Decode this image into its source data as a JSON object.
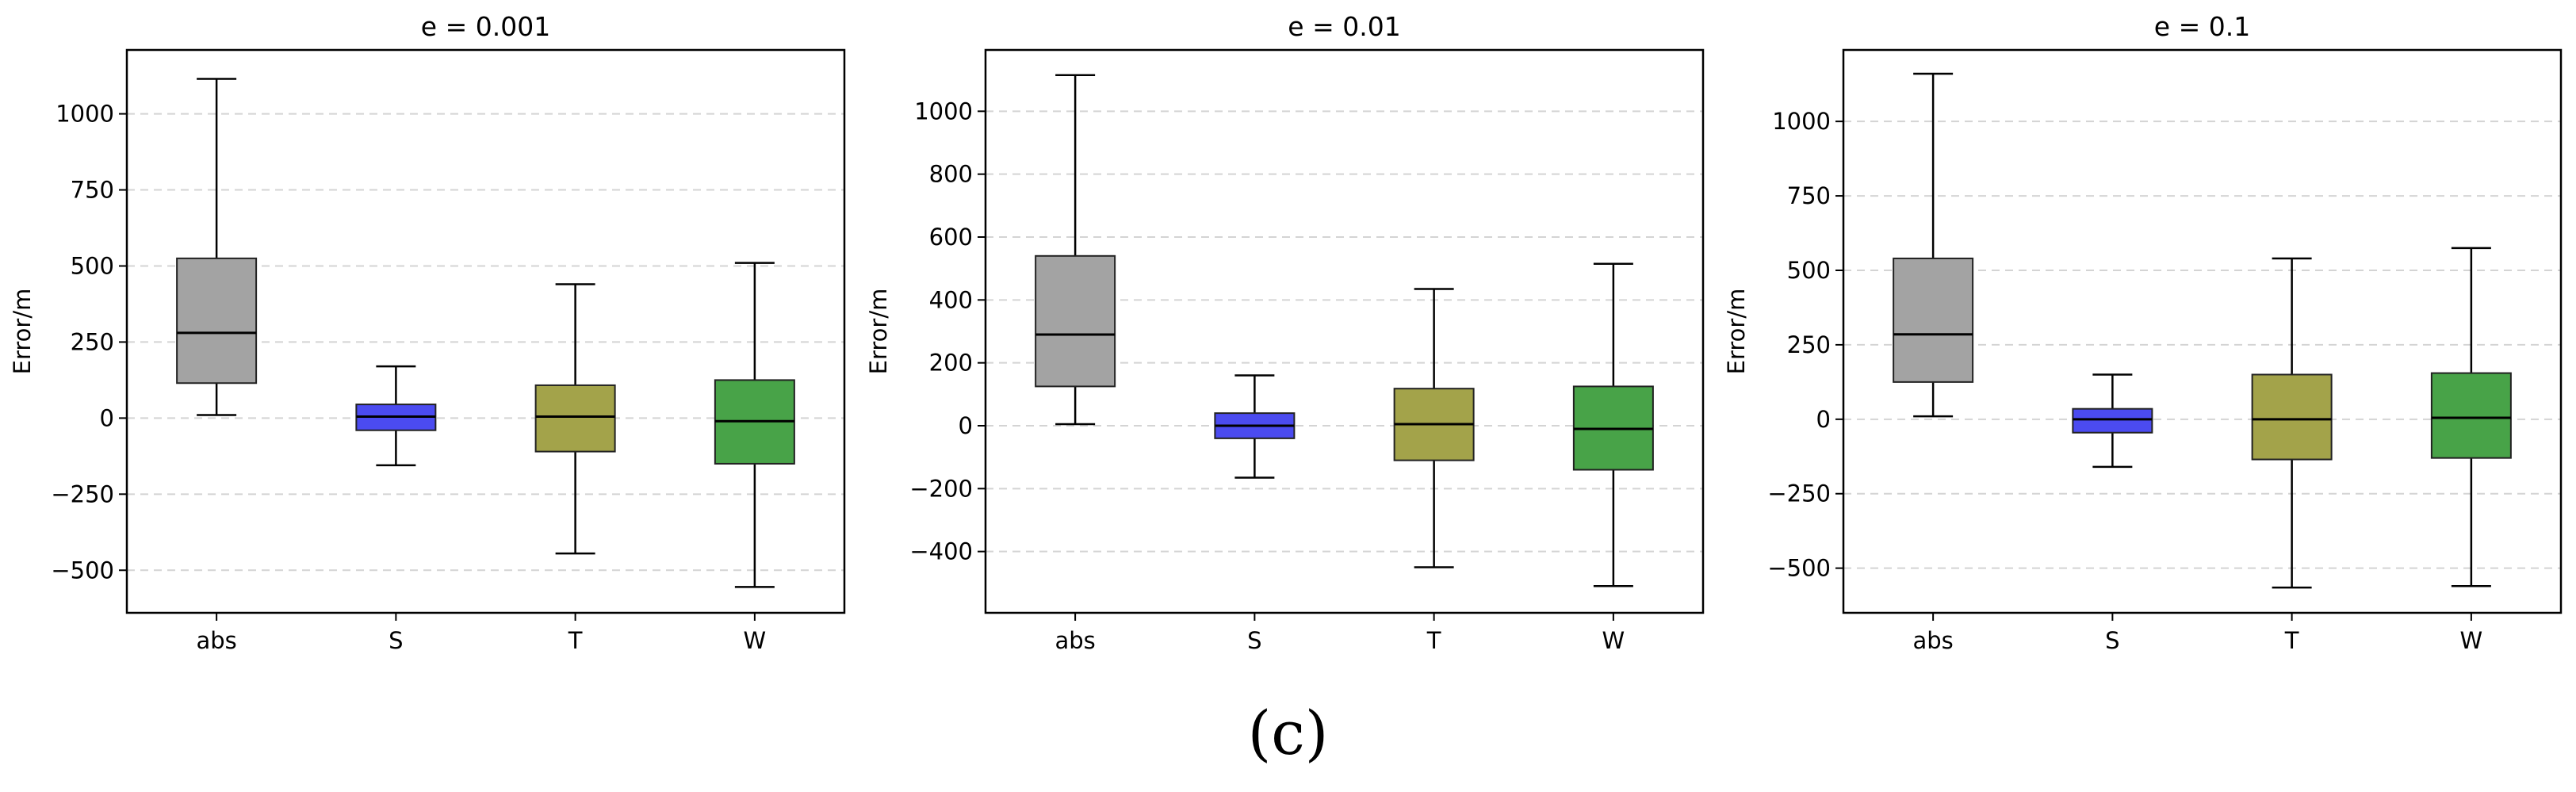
{
  "chart_data": [
    {
      "type": "boxplot",
      "title": "e = 0.001",
      "ylabel": "Error/m",
      "ylim": [
        -640,
        1210
      ],
      "yticks": [
        -500,
        -250,
        0,
        250,
        500,
        750,
        1000
      ],
      "grid": "horizontal-dashed",
      "categories": [
        "abs",
        "S",
        "T",
        "W"
      ],
      "boxes": [
        {
          "name": "abs",
          "whisker_low": 10,
          "q1": 115,
          "median": 280,
          "q3": 525,
          "whisker_high": 1115
        },
        {
          "name": "S",
          "whisker_low": -155,
          "q1": -40,
          "median": 5,
          "q3": 45,
          "whisker_high": 170
        },
        {
          "name": "T",
          "whisker_low": -445,
          "q1": -110,
          "median": 5,
          "q3": 108,
          "whisker_high": 440
        },
        {
          "name": "W",
          "whisker_low": -555,
          "q1": -150,
          "median": -10,
          "q3": 125,
          "whisker_high": 510
        }
      ]
    },
    {
      "type": "boxplot",
      "title": "e = 0.01",
      "ylabel": "Error/m",
      "ylim": [
        -595,
        1195
      ],
      "yticks": [
        -400,
        -200,
        0,
        200,
        400,
        600,
        800,
        1000
      ],
      "grid": "horizontal-dashed",
      "categories": [
        "abs",
        "S",
        "T",
        "W"
      ],
      "boxes": [
        {
          "name": "abs",
          "whisker_low": 5,
          "q1": 125,
          "median": 290,
          "q3": 540,
          "whisker_high": 1115
        },
        {
          "name": "S",
          "whisker_low": -165,
          "q1": -40,
          "median": 0,
          "q3": 40,
          "whisker_high": 160
        },
        {
          "name": "T",
          "whisker_low": -450,
          "q1": -110,
          "median": 5,
          "q3": 118,
          "whisker_high": 435
        },
        {
          "name": "W",
          "whisker_low": -510,
          "q1": -140,
          "median": -10,
          "q3": 125,
          "whisker_high": 515
        }
      ]
    },
    {
      "type": "boxplot",
      "title": "e = 0.1",
      "ylabel": "Error/m",
      "ylim": [
        -650,
        1240
      ],
      "yticks": [
        -500,
        -250,
        0,
        250,
        500,
        750,
        1000
      ],
      "grid": "horizontal-dashed",
      "categories": [
        "abs",
        "S",
        "T",
        "W"
      ],
      "boxes": [
        {
          "name": "abs",
          "whisker_low": 10,
          "q1": 125,
          "median": 285,
          "q3": 540,
          "whisker_high": 1160
        },
        {
          "name": "S",
          "whisker_low": -160,
          "q1": -45,
          "median": 0,
          "q3": 35,
          "whisker_high": 150
        },
        {
          "name": "T",
          "whisker_low": -565,
          "q1": -135,
          "median": 0,
          "q3": 150,
          "whisker_high": 540
        },
        {
          "name": "W",
          "whisker_low": -560,
          "q1": -130,
          "median": 5,
          "q3": 155,
          "whisker_high": 575
        }
      ]
    }
  ],
  "colors": {
    "abs": "#a3a3a3",
    "S": "#4b4bf0",
    "T": "#a3a34a",
    "W": "#48a348"
  },
  "caption": "(c)"
}
